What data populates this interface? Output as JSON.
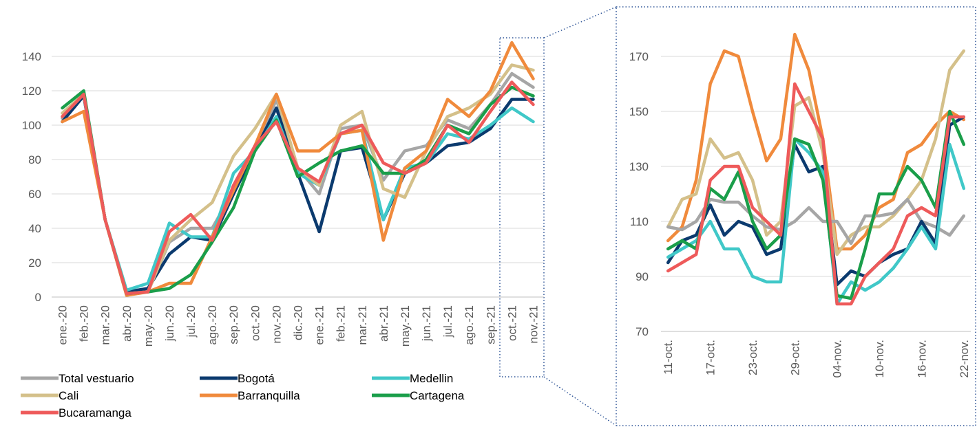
{
  "chart_data": [
    {
      "type": "line",
      "categories": [
        "ene.-20",
        "feb.-20",
        "mar.-20",
        "abr.-20",
        "may.-20",
        "jun.-20",
        "jul.-20",
        "ago.-20",
        "sep.-20",
        "oct.-20",
        "nov.-20",
        "dic.-20",
        "ene.-21",
        "feb.-21",
        "mar.-21",
        "abr.-21",
        "may.-21",
        "jun.-21",
        "jul.-21",
        "ago.-21",
        "sep.-21",
        "oct.-21",
        "nov.-21"
      ],
      "series": [
        {
          "name": "Total vestuario",
          "color": "#a6a6a6",
          "values": [
            104,
            118,
            45,
            2,
            3,
            32,
            40,
            40,
            62,
            85,
            115,
            75,
            60,
            98,
            100,
            68,
            85,
            88,
            103,
            98,
            112,
            130,
            122
          ]
        },
        {
          "name": "Bogotá",
          "color": "#0b3a6e",
          "values": [
            102,
            117,
            45,
            3,
            5,
            25,
            35,
            33,
            60,
            85,
            110,
            72,
            38,
            85,
            87,
            45,
            72,
            78,
            88,
            90,
            98,
            115,
            115
          ]
        },
        {
          "name": "Medellin",
          "color": "#40c8c8",
          "values": [
            105,
            118,
            45,
            4,
            8,
            43,
            35,
            35,
            72,
            85,
            105,
            72,
            65,
            95,
            97,
            45,
            75,
            78,
            95,
            92,
            100,
            110,
            102
          ]
        },
        {
          "name": "Cali",
          "color": "#d4c08a",
          "values": [
            107,
            118,
            45,
            2,
            3,
            33,
            45,
            55,
            82,
            98,
            118,
            75,
            65,
            100,
            108,
            63,
            58,
            85,
            105,
            110,
            118,
            135,
            132
          ]
        },
        {
          "name": "Barranquilla",
          "color": "#f08a3c",
          "values": [
            102,
            108,
            45,
            1,
            3,
            8,
            8,
            35,
            62,
            88,
            118,
            85,
            85,
            95,
            97,
            33,
            75,
            85,
            115,
            105,
            120,
            148,
            127
          ]
        },
        {
          "name": "Cartagena",
          "color": "#1a9e4a",
          "values": [
            110,
            120,
            45,
            2,
            3,
            5,
            13,
            32,
            52,
            85,
            103,
            70,
            78,
            85,
            88,
            72,
            72,
            80,
            100,
            95,
            112,
            122,
            117
          ]
        },
        {
          "name": "Bucaramanga",
          "color": "#ee5a5a",
          "values": [
            105,
            118,
            45,
            2,
            3,
            38,
            48,
            33,
            65,
            88,
            102,
            75,
            67,
            95,
            100,
            78,
            72,
            78,
            100,
            90,
            108,
            125,
            112
          ]
        }
      ],
      "ylim": [
        0,
        150
      ],
      "yticks": [
        0,
        20,
        40,
        60,
        80,
        100,
        120,
        140
      ],
      "grid": true,
      "legend": "bottom"
    },
    {
      "type": "line",
      "categories": [
        "11-oct.",
        null,
        null,
        "17-oct.",
        null,
        null,
        "23-oct.",
        null,
        null,
        "29-oct.",
        null,
        null,
        "04-nov.",
        null,
        null,
        "10-nov.",
        null,
        null,
        "16-nov.",
        null,
        null,
        "22-nov."
      ],
      "series": [
        {
          "color": "#f08a3c",
          "values": [
            103,
            108,
            125,
            160,
            172,
            170,
            150,
            132,
            140,
            178,
            165,
            140,
            100,
            100,
            105,
            115,
            118,
            135,
            138,
            145,
            150,
            147
          ]
        },
        {
          "color": "#d4c08a",
          "values": [
            108,
            118,
            120,
            140,
            133,
            135,
            125,
            105,
            110,
            152,
            155,
            135,
            98,
            105,
            108,
            108,
            112,
            118,
            125,
            140,
            165,
            172
          ]
        },
        {
          "color": "#a6a6a6",
          "values": [
            108,
            107,
            110,
            118,
            117,
            117,
            112,
            108,
            107,
            110,
            115,
            110,
            110,
            102,
            112,
            112,
            113,
            118,
            110,
            108,
            105,
            112
          ]
        },
        {
          "color": "#0b3a6e",
          "values": [
            95,
            103,
            105,
            116,
            105,
            110,
            108,
            98,
            100,
            138,
            128,
            130,
            87,
            92,
            90,
            95,
            98,
            100,
            110,
            102,
            145,
            148
          ]
        },
        {
          "color": "#40c8c8",
          "values": [
            97,
            100,
            103,
            110,
            100,
            100,
            90,
            88,
            88,
            140,
            135,
            128,
            80,
            88,
            85,
            88,
            93,
            100,
            108,
            100,
            138,
            122
          ]
        },
        {
          "color": "#1a9e4a",
          "values": [
            100,
            103,
            100,
            122,
            118,
            128,
            110,
            100,
            105,
            140,
            138,
            125,
            83,
            82,
            100,
            120,
            120,
            130,
            125,
            115,
            150,
            138
          ]
        },
        {
          "color": "#ee5a5a",
          "values": [
            92,
            95,
            98,
            125,
            130,
            130,
            115,
            110,
            105,
            160,
            150,
            140,
            80,
            80,
            90,
            95,
            100,
            112,
            115,
            112,
            148,
            148
          ]
        }
      ],
      "ylim": [
        70,
        180
      ],
      "yticks": [
        70,
        90,
        110,
        130,
        150,
        170
      ],
      "grid": true
    }
  ]
}
